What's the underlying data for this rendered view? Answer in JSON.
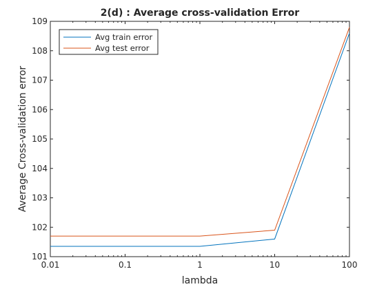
{
  "chart_data": {
    "type": "line",
    "title": "2(d) : Average cross-validation Error",
    "xlabel": "lambda",
    "ylabel": "Average Cross-validation error",
    "xscale": "log",
    "x": [
      0.01,
      0.1,
      1,
      10,
      100
    ],
    "x_tick_labels": [
      "0.01",
      "0.1",
      "1",
      "10",
      "100"
    ],
    "xlim": [
      0.01,
      100
    ],
    "ylim": [
      101,
      109
    ],
    "y_ticks": [
      101,
      102,
      103,
      104,
      105,
      106,
      107,
      108,
      109
    ],
    "grid": false,
    "legend_position": "top-left",
    "series": [
      {
        "name": "Avg train error",
        "color": "#0072BD",
        "values": [
          101.35,
          101.35,
          101.35,
          101.6,
          108.6
        ]
      },
      {
        "name": "Avg test error",
        "color": "#D95319",
        "values": [
          101.7,
          101.7,
          101.7,
          101.9,
          108.8
        ]
      }
    ]
  }
}
